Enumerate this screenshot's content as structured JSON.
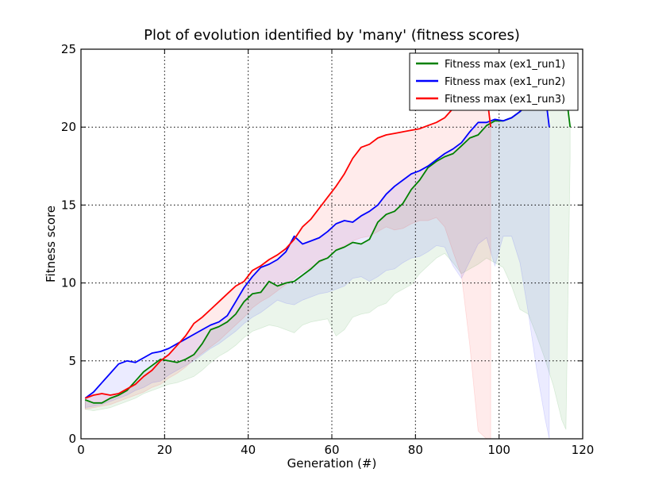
{
  "chart_data": {
    "type": "line",
    "title": "Plot of evolution identified by 'many' (fitness scores)",
    "xlabel": "Generation (#)",
    "ylabel": "Fitness score",
    "xlim": [
      0,
      120
    ],
    "ylim": [
      0,
      25
    ],
    "xticks": [
      "0",
      "20",
      "40",
      "60",
      "80",
      "100",
      "120"
    ],
    "yticks": [
      "0",
      "5",
      "10",
      "15",
      "20",
      "25"
    ],
    "grid": true,
    "legend_position": "top-right",
    "series": [
      {
        "name": "Fitness max (ex1_run1)",
        "color": "#008000",
        "x": [
          1,
          3,
          5,
          7,
          9,
          11,
          13,
          15,
          17,
          19,
          21,
          23,
          25,
          27,
          29,
          31,
          33,
          35,
          37,
          39,
          41,
          43,
          45,
          47,
          49,
          51,
          53,
          55,
          57,
          59,
          61,
          63,
          65,
          67,
          69,
          71,
          73,
          75,
          77,
          79,
          81,
          83,
          85,
          87,
          89,
          91,
          93,
          95,
          97,
          99,
          101,
          103,
          105,
          107,
          109,
          111,
          113,
          115,
          116,
          117
        ],
        "y": [
          2.5,
          2.3,
          2.3,
          2.6,
          2.8,
          3.1,
          3.7,
          4.3,
          4.7,
          5.1,
          5.0,
          4.9,
          5.1,
          5.4,
          6.1,
          7.0,
          7.2,
          7.5,
          8.0,
          8.8,
          9.3,
          9.4,
          10.1,
          9.8,
          10.0,
          10.1,
          10.5,
          10.9,
          11.4,
          11.6,
          12.1,
          12.3,
          12.6,
          12.5,
          12.8,
          13.9,
          14.4,
          14.6,
          15.1,
          16.0,
          16.6,
          17.4,
          17.8,
          18.1,
          18.3,
          18.8,
          19.3,
          19.5,
          20.1,
          20.4,
          20.4,
          20.6,
          21.0,
          21.5,
          22.0,
          22.2,
          22.2,
          22.3,
          22.2,
          20.0
        ],
        "band_low": [
          1.9,
          1.8,
          1.9,
          2.0,
          2.2,
          2.4,
          2.6,
          2.9,
          3.1,
          3.3,
          3.5,
          3.6,
          3.8,
          4.0,
          4.4,
          4.9,
          5.3,
          5.6,
          6.0,
          6.5,
          6.9,
          7.1,
          7.3,
          7.2,
          7.0,
          6.8,
          7.3,
          7.5,
          7.6,
          7.7,
          6.6,
          7.0,
          7.8,
          8.0,
          8.1,
          8.5,
          8.7,
          9.3,
          9.6,
          9.9,
          10.6,
          11.1,
          11.6,
          11.9,
          11.3,
          10.6,
          10.9,
          11.2,
          11.6,
          11.3,
          11.0,
          9.8,
          8.3,
          8.0,
          6.6,
          5.1,
          3.4,
          1.2,
          0.6,
          18.0
        ]
      },
      {
        "name": "Fitness max (ex1_run2)",
        "color": "#0000ff",
        "x": [
          1,
          3,
          5,
          7,
          9,
          11,
          13,
          15,
          17,
          19,
          21,
          23,
          25,
          27,
          29,
          31,
          33,
          35,
          37,
          39,
          41,
          43,
          45,
          47,
          49,
          51,
          53,
          55,
          57,
          59,
          61,
          63,
          65,
          67,
          69,
          71,
          73,
          75,
          77,
          79,
          81,
          83,
          85,
          87,
          89,
          91,
          93,
          95,
          97,
          99,
          101,
          103,
          105,
          107,
          109,
          111,
          112
        ],
        "y": [
          2.6,
          3.0,
          3.6,
          4.2,
          4.8,
          5.0,
          4.9,
          5.2,
          5.5,
          5.6,
          5.8,
          6.1,
          6.4,
          6.7,
          7.0,
          7.3,
          7.5,
          7.9,
          8.8,
          9.7,
          10.4,
          11.0,
          11.2,
          11.5,
          12.0,
          13.0,
          12.5,
          12.7,
          12.9,
          13.3,
          13.8,
          14.0,
          13.9,
          14.3,
          14.6,
          15.0,
          15.7,
          16.2,
          16.6,
          17.0,
          17.2,
          17.5,
          17.9,
          18.3,
          18.6,
          19.0,
          19.7,
          20.3,
          20.3,
          20.5,
          20.4,
          20.6,
          21.0,
          21.5,
          22.0,
          22.2,
          20.0
        ],
        "band_low": [
          2.0,
          2.1,
          2.2,
          2.4,
          2.6,
          2.8,
          3.1,
          3.3,
          3.6,
          3.7,
          4.1,
          4.4,
          4.7,
          5.0,
          5.4,
          5.8,
          6.1,
          6.5,
          6.9,
          7.4,
          7.8,
          8.1,
          8.5,
          8.9,
          8.7,
          8.6,
          8.9,
          9.1,
          9.3,
          9.4,
          9.6,
          9.8,
          10.3,
          10.4,
          10.1,
          10.4,
          10.8,
          10.9,
          11.3,
          11.6,
          11.7,
          12.0,
          12.4,
          12.3,
          11.1,
          10.3,
          11.4,
          12.5,
          12.9,
          11.1,
          13.0,
          13.0,
          11.3,
          8.1,
          4.4,
          1.3,
          0.0
        ]
      },
      {
        "name": "Fitness max (ex1_run3)",
        "color": "#ff0000",
        "x": [
          1,
          3,
          5,
          7,
          9,
          11,
          13,
          15,
          17,
          19,
          21,
          23,
          25,
          27,
          29,
          31,
          33,
          35,
          37,
          39,
          41,
          43,
          45,
          47,
          49,
          51,
          53,
          55,
          57,
          59,
          61,
          63,
          65,
          67,
          69,
          71,
          73,
          75,
          77,
          79,
          81,
          83,
          85,
          87,
          89,
          91,
          93,
          95,
          97,
          98
        ],
        "y": [
          2.6,
          2.8,
          2.9,
          2.8,
          2.9,
          3.2,
          3.5,
          4.0,
          4.4,
          5.0,
          5.4,
          6.0,
          6.6,
          7.4,
          7.8,
          8.3,
          8.8,
          9.3,
          9.8,
          10.1,
          10.8,
          11.1,
          11.5,
          11.8,
          12.2,
          12.8,
          13.6,
          14.1,
          14.8,
          15.5,
          16.2,
          17.0,
          18.0,
          18.7,
          18.9,
          19.3,
          19.5,
          19.6,
          19.7,
          19.8,
          19.9,
          20.1,
          20.3,
          20.6,
          21.2,
          21.6,
          22.0,
          22.4,
          22.2,
          20.0
        ],
        "band_low": [
          1.9,
          2.0,
          2.1,
          2.2,
          2.4,
          2.6,
          2.8,
          3.0,
          3.3,
          3.5,
          3.9,
          4.2,
          4.6,
          5.1,
          5.5,
          5.9,
          6.3,
          6.8,
          7.3,
          7.8,
          8.4,
          8.8,
          9.1,
          9.5,
          9.9,
          10.3,
          10.7,
          11.0,
          11.3,
          11.6,
          12.1,
          12.4,
          12.7,
          12.9,
          13.0,
          13.3,
          13.6,
          13.4,
          13.5,
          13.8,
          14.0,
          14.0,
          14.2,
          13.6,
          12.0,
          10.5,
          6.0,
          0.5,
          0.0,
          0.0
        ]
      }
    ]
  }
}
